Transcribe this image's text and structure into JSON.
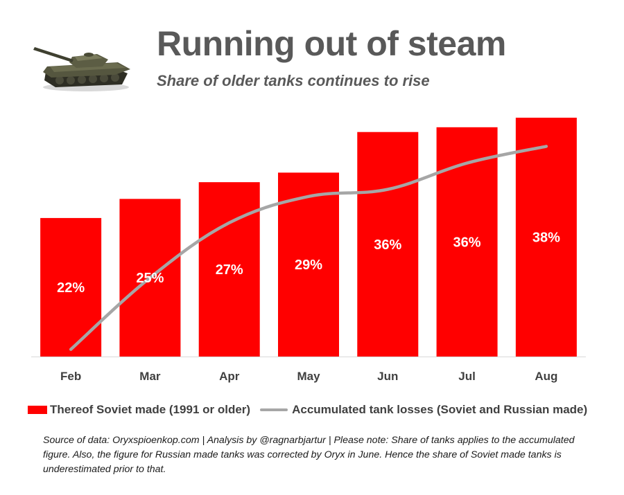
{
  "title": "Running out of steam",
  "subtitle": "Share of older tanks continues to rise",
  "tank_image": {
    "icon": "tank-icon"
  },
  "chart_data": {
    "type": "bar",
    "title": "Running out of steam",
    "subtitle": "Share of older tanks continues to rise",
    "categories": [
      "Feb",
      "Mar",
      "Apr",
      "May",
      "Jun",
      "Jul",
      "Aug"
    ],
    "xlabel": "",
    "ylabel": "",
    "ylim": [
      0,
      100
    ],
    "grid": false,
    "legend_position": "bottom",
    "series": [
      {
        "name": "Thereof Soviet made (1991 or older)",
        "type": "bar",
        "color": "#ff0000",
        "values": [
          58,
          66,
          73,
          77,
          94,
          96,
          100
        ],
        "data_labels": [
          "22%",
          "25%",
          "27%",
          "29%",
          "36%",
          "36%",
          "38%"
        ]
      },
      {
        "name": "Accumulated tank losses (Soviet and Russian made)",
        "type": "line",
        "color": "#a6a6a6",
        "values": [
          3,
          33,
          56,
          67,
          70,
          81,
          88
        ]
      }
    ]
  },
  "legend": {
    "bar_label": "Thereof Soviet made (1991 or older)",
    "line_label": "Accumulated tank losses (Soviet and Russian made)"
  },
  "footnote": "Source of data: Oryxspioenkop.com | Analysis by @ragnarbjartur | Please note: Share of tanks applies to the accumulated figure. Also, the figure for Russian made tanks was corrected by Oryx in June. Hence the share of Soviet made tanks is underestimated prior to that."
}
